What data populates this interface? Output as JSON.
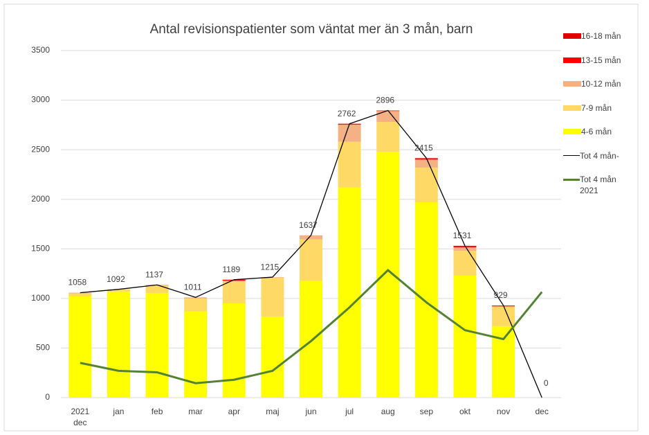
{
  "chart_data": {
    "type": "bar",
    "stacked": true,
    "title": "Antal revisionspatienter som väntat mer än 3 mån, barn",
    "categories": [
      "2021 dec",
      "jan",
      "feb",
      "mar",
      "apr",
      "maj",
      "jun",
      "jul",
      "aug",
      "sep",
      "okt",
      "nov",
      "dec"
    ],
    "series": [
      {
        "name": "4-6 mån",
        "color": "#ffff00",
        "values": [
          1020,
          1070,
          1055,
          870,
          950,
          815,
          1175,
          2120,
          2480,
          1970,
          1230,
          720,
          0
        ]
      },
      {
        "name": "7-9 mån",
        "color": "#ffd966",
        "values": [
          30,
          22,
          75,
          130,
          220,
          395,
          420,
          460,
          300,
          350,
          250,
          200,
          0
        ]
      },
      {
        "name": "10-12 mån",
        "color": "#f4b183",
        "values": [
          8,
          0,
          7,
          11,
          9,
          5,
          42,
          172,
          110,
          80,
          36,
          0,
          0
        ]
      },
      {
        "name": "13-15 mån",
        "color": "#ff0000",
        "values": [
          0,
          0,
          0,
          0,
          5,
          0,
          0,
          5,
          3,
          8,
          8,
          4,
          0
        ]
      },
      {
        "name": "16-18 mån",
        "color": "#e00000",
        "values": [
          0,
          0,
          0,
          0,
          5,
          0,
          0,
          5,
          3,
          7,
          7,
          5,
          0
        ]
      },
      {
        "name": "Tot 4 mån-",
        "type": "line",
        "color": "#000000",
        "width": 1.3,
        "data_labels": true,
        "values": [
          1058,
          1092,
          1137,
          1011,
          1189,
          1215,
          1637,
          2762,
          2896,
          2415,
          1531,
          929,
          0
        ]
      },
      {
        "name": "Tot 4 mån 2021",
        "type": "line",
        "color": "#548235",
        "width": 3,
        "values": [
          350,
          270,
          255,
          145,
          180,
          270,
          570,
          910,
          1285,
          960,
          680,
          590,
          1065
        ]
      }
    ],
    "ylim": [
      0,
      3500
    ],
    "yticks": [
      0,
      500,
      1000,
      1500,
      2000,
      2500,
      3000,
      3500
    ],
    "legend": "right"
  }
}
